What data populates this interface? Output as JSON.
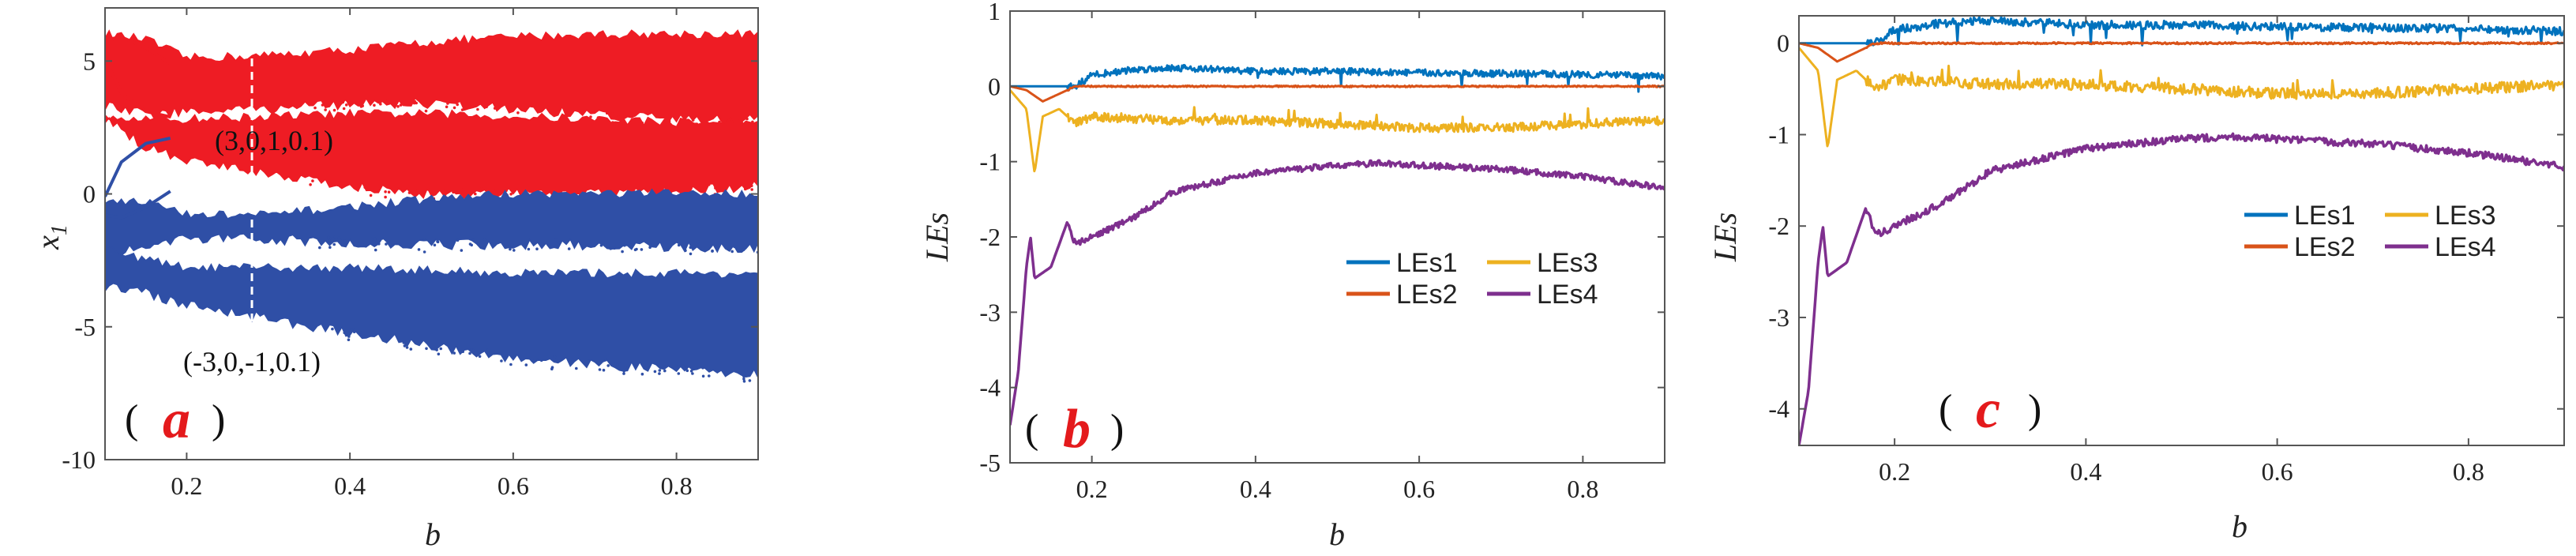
{
  "colors": {
    "red": "#ee1c24",
    "blue": "#2f4fa6",
    "les1": "#0072bd",
    "les2": "#d95319",
    "les3": "#edb120",
    "les4": "#7e2f8e",
    "panel_letter": "#e41a1c"
  },
  "chart_data": [
    {
      "id": "a",
      "type": "scatter",
      "title": "",
      "xlabel": "b",
      "ylabel": "x1",
      "ylabel_main": "x",
      "ylabel_sub": "1",
      "xlim": [
        0.1,
        0.9
      ],
      "ylim": [
        -10,
        7
      ],
      "xticks": [
        0.2,
        0.4,
        0.6,
        0.8
      ],
      "xtick_labels": [
        "0.2",
        "0.4",
        "0.6",
        "0.8"
      ],
      "yticks": [
        5,
        0,
        -5,
        -10
      ],
      "ytick_labels": [
        "5",
        "0",
        "-5",
        "-10"
      ],
      "series": [
        {
          "name": "red",
          "initial": "(3,0,1,0.1)",
          "color": "#ee1c24",
          "bands": [
            {
              "b": [
                0.1,
                0.15,
                0.2,
                0.3,
                0.4,
                0.5,
                0.6,
                0.7,
                0.8,
                0.9
              ],
              "lo": [
                3.5,
                3.2,
                3.3,
                3.4,
                3.6,
                3.6,
                3.4,
                3.2,
                3.0,
                3.0
              ],
              "hi": [
                6.0,
                5.8,
                5.1,
                5.2,
                5.4,
                5.7,
                5.9,
                6.0,
                6.0,
                6.0
              ]
            },
            {
              "b": [
                0.1,
                0.15,
                0.2,
                0.3,
                0.4,
                0.5,
                0.6,
                0.7,
                0.8,
                0.9
              ],
              "lo": [
                3.0,
                2.0,
                1.5,
                1.0,
                0.5,
                0.2,
                0.2,
                0.2,
                0.3,
                0.5
              ],
              "hi": [
                3.0,
                2.8,
                2.8,
                2.9,
                3.0,
                3.0,
                2.9,
                2.8,
                2.7,
                2.7
              ]
            }
          ]
        },
        {
          "name": "blue",
          "initial": "(-3,0,-1,0.1)",
          "color": "#2f4fa6",
          "bands": [
            {
              "b": [
                0.1,
                0.15,
                0.2,
                0.3,
                0.4,
                0.5,
                0.6,
                0.7,
                0.8,
                0.9
              ],
              "lo": [
                -2.0,
                -1.8,
                -1.5,
                -1.5,
                -1.6,
                -1.7,
                -1.7,
                -1.7,
                -1.8,
                -1.8
              ],
              "hi": [
                -0.2,
                -0.3,
                -0.8,
                -0.8,
                -0.5,
                -0.2,
                0.0,
                0.0,
                0.0,
                0.0
              ]
            },
            {
              "b": [
                0.1,
                0.15,
                0.2,
                0.3,
                0.4,
                0.5,
                0.6,
                0.7,
                0.8,
                0.9
              ],
              "lo": [
                -3.3,
                -3.5,
                -4.0,
                -4.5,
                -5.0,
                -5.5,
                -6.0,
                -6.2,
                -6.4,
                -6.6
              ],
              "hi": [
                -2.0,
                -2.5,
                -2.8,
                -2.8,
                -2.8,
                -2.9,
                -3.0,
                -3.0,
                -3.0,
                -3.0
              ]
            }
          ]
        }
      ],
      "panel_letter": "a",
      "paren_open": "(",
      "paren_close": ")"
    },
    {
      "id": "b",
      "type": "line",
      "title": "",
      "xlabel": "b",
      "ylabel": "LEs",
      "xlim": [
        0.1,
        0.9
      ],
      "ylim": [
        -5,
        1
      ],
      "xticks": [
        0.2,
        0.4,
        0.6,
        0.8
      ],
      "xtick_labels": [
        "0.2",
        "0.4",
        "0.6",
        "0.8"
      ],
      "yticks": [
        1,
        0,
        -1,
        -2,
        -3,
        -4,
        -5
      ],
      "ytick_labels": [
        "1",
        "0",
        "-1",
        "-2",
        "-3",
        "-4",
        "-5"
      ],
      "legend": [
        "LEs1",
        "LEs2",
        "LEs3",
        "LEs4"
      ],
      "legend_position": "center-right",
      "series": [
        {
          "name": "LEs1",
          "color": "#0072bd",
          "x": [
            0.1,
            0.15,
            0.18,
            0.2,
            0.25,
            0.3,
            0.4,
            0.5,
            0.6,
            0.7,
            0.8,
            0.9
          ],
          "y": [
            0.0,
            0.0,
            0.0,
            0.15,
            0.22,
            0.25,
            0.2,
            0.2,
            0.18,
            0.17,
            0.16,
            0.13
          ]
        },
        {
          "name": "LEs2",
          "color": "#d95319",
          "x": [
            0.1,
            0.12,
            0.14,
            0.16,
            0.18,
            0.2,
            0.9
          ],
          "y": [
            0.0,
            -0.05,
            -0.2,
            -0.1,
            0.0,
            0.0,
            0.0
          ]
        },
        {
          "name": "LEs3",
          "color": "#edb120",
          "x": [
            0.1,
            0.12,
            0.13,
            0.14,
            0.16,
            0.18,
            0.2,
            0.3,
            0.4,
            0.5,
            0.6,
            0.7,
            0.8,
            0.9
          ],
          "y": [
            -0.05,
            -0.3,
            -1.15,
            -0.4,
            -0.3,
            -0.5,
            -0.4,
            -0.45,
            -0.45,
            -0.5,
            -0.55,
            -0.55,
            -0.5,
            -0.45
          ]
        },
        {
          "name": "LEs4",
          "color": "#7e2f8e",
          "x": [
            0.1,
            0.11,
            0.12,
            0.125,
            0.13,
            0.15,
            0.17,
            0.18,
            0.2,
            0.25,
            0.3,
            0.4,
            0.5,
            0.55,
            0.6,
            0.7,
            0.8,
            0.9
          ],
          "y": [
            -4.5,
            -3.8,
            -2.4,
            -2.0,
            -2.55,
            -2.4,
            -1.8,
            -2.1,
            -2.0,
            -1.75,
            -1.4,
            -1.15,
            -1.05,
            -1.02,
            -1.05,
            -1.1,
            -1.2,
            -1.35
          ]
        }
      ],
      "panel_letter": "b",
      "paren_open": "(",
      "paren_close": ")"
    },
    {
      "id": "c",
      "type": "line",
      "title": "",
      "xlabel": "b",
      "ylabel": "LEs",
      "xlim": [
        0.1,
        0.9
      ],
      "ylim": [
        -4.4,
        0.3
      ],
      "xticks": [
        0.2,
        0.4,
        0.6,
        0.8
      ],
      "xtick_labels": [
        "0.2",
        "0.4",
        "0.6",
        "0.8"
      ],
      "yticks": [
        0,
        -1,
        -2,
        -3,
        -4
      ],
      "ytick_labels": [
        "0",
        "-1",
        "-2",
        "-3",
        "-4"
      ],
      "legend": [
        "LEs1",
        "LEs2",
        "LEs3",
        "LEs4"
      ],
      "legend_position": "center-right",
      "series": [
        {
          "name": "LEs1",
          "color": "#0072bd",
          "x": [
            0.1,
            0.15,
            0.18,
            0.2,
            0.25,
            0.3,
            0.4,
            0.5,
            0.6,
            0.7,
            0.8,
            0.9
          ],
          "y": [
            0.0,
            0.0,
            0.0,
            0.15,
            0.22,
            0.25,
            0.2,
            0.2,
            0.18,
            0.17,
            0.16,
            0.13
          ]
        },
        {
          "name": "LEs2",
          "color": "#d95319",
          "x": [
            0.1,
            0.12,
            0.14,
            0.16,
            0.18,
            0.2,
            0.9
          ],
          "y": [
            0.0,
            -0.05,
            -0.2,
            -0.1,
            0.0,
            0.0,
            0.0
          ]
        },
        {
          "name": "LEs3",
          "color": "#edb120",
          "x": [
            0.1,
            0.12,
            0.13,
            0.14,
            0.16,
            0.18,
            0.2,
            0.3,
            0.4,
            0.5,
            0.6,
            0.7,
            0.8,
            0.9
          ],
          "y": [
            -0.05,
            -0.3,
            -1.15,
            -0.4,
            -0.3,
            -0.5,
            -0.4,
            -0.45,
            -0.45,
            -0.5,
            -0.55,
            -0.55,
            -0.5,
            -0.45
          ]
        },
        {
          "name": "LEs4",
          "color": "#7e2f8e",
          "x": [
            0.1,
            0.11,
            0.12,
            0.125,
            0.13,
            0.15,
            0.17,
            0.18,
            0.2,
            0.25,
            0.3,
            0.4,
            0.5,
            0.55,
            0.6,
            0.7,
            0.8,
            0.9
          ],
          "y": [
            -4.4,
            -3.8,
            -2.4,
            -2.0,
            -2.55,
            -2.4,
            -1.8,
            -2.1,
            -2.0,
            -1.75,
            -1.4,
            -1.15,
            -1.05,
            -1.02,
            -1.05,
            -1.1,
            -1.2,
            -1.35
          ]
        }
      ],
      "panel_letter": "c",
      "paren_open": "(",
      "paren_close": ")"
    }
  ]
}
